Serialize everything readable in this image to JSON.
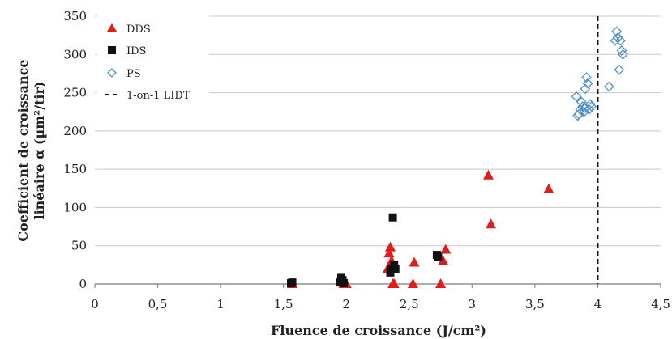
{
  "chart_data": {
    "type": "scatter",
    "xlabel": "Fluence de croissance (J/cm²)",
    "ylabel_line1": "Coefficient de croissance",
    "ylabel_line2": "linéaire α (µm²/tir)",
    "xlim": [
      0,
      4.5
    ],
    "ylim": [
      0,
      350
    ],
    "x_ticks": [
      "0",
      "0,5",
      "1",
      "1,5",
      "2",
      "2,5",
      "3",
      "3,5",
      "4",
      "4,5"
    ],
    "y_ticks": [
      "0",
      "50",
      "100",
      "150",
      "200",
      "250",
      "300",
      "350"
    ],
    "x_tick_values": [
      0,
      0.5,
      1,
      1.5,
      2,
      2.5,
      3,
      3.5,
      4,
      4.5
    ],
    "y_tick_values": [
      0,
      50,
      100,
      150,
      200,
      250,
      300,
      350
    ],
    "grid": "horizontal",
    "legend_position": "top-left",
    "series": [
      {
        "name": "DDS",
        "marker": "triangle",
        "color": "#e01b1b",
        "points": [
          [
            1.57,
            0
          ],
          [
            1.98,
            0
          ],
          [
            2.0,
            0
          ],
          [
            2.33,
            20
          ],
          [
            2.34,
            40
          ],
          [
            2.35,
            48
          ],
          [
            2.36,
            30
          ],
          [
            2.37,
            0
          ],
          [
            2.38,
            0
          ],
          [
            2.53,
            0
          ],
          [
            2.54,
            28
          ],
          [
            2.75,
            0
          ],
          [
            2.77,
            30
          ],
          [
            2.79,
            45
          ],
          [
            3.13,
            142
          ],
          [
            3.15,
            78
          ],
          [
            3.61,
            124
          ]
        ]
      },
      {
        "name": "IDS",
        "marker": "square",
        "color": "#111111",
        "points": [
          [
            1.56,
            1
          ],
          [
            1.57,
            2
          ],
          [
            1.95,
            2
          ],
          [
            1.96,
            8
          ],
          [
            1.97,
            5
          ],
          [
            1.98,
            1
          ],
          [
            2.35,
            15
          ],
          [
            2.36,
            20
          ],
          [
            2.37,
            87
          ],
          [
            2.38,
            25
          ],
          [
            2.39,
            20
          ],
          [
            2.72,
            38
          ],
          [
            2.73,
            35
          ]
        ]
      },
      {
        "name": "PS",
        "marker": "diamond",
        "color": "#4f8fc6",
        "points": [
          [
            3.83,
            245
          ],
          [
            3.84,
            220
          ],
          [
            3.85,
            222
          ],
          [
            3.86,
            228
          ],
          [
            3.87,
            238
          ],
          [
            3.88,
            232
          ],
          [
            3.89,
            225
          ],
          [
            3.9,
            230
          ],
          [
            3.9,
            255
          ],
          [
            3.91,
            270
          ],
          [
            3.92,
            262
          ],
          [
            3.93,
            228
          ],
          [
            3.94,
            235
          ],
          [
            3.95,
            232
          ],
          [
            4.09,
            258
          ],
          [
            4.14,
            318
          ],
          [
            4.15,
            330
          ],
          [
            4.16,
            322
          ],
          [
            4.17,
            280
          ],
          [
            4.18,
            318
          ],
          [
            4.19,
            305
          ],
          [
            4.2,
            300
          ]
        ]
      }
    ],
    "reference_lines": [
      {
        "name": "1-on-1 LIDT",
        "orientation": "vertical",
        "x": 4.0,
        "style": "dashed",
        "color": "#111111"
      }
    ]
  }
}
